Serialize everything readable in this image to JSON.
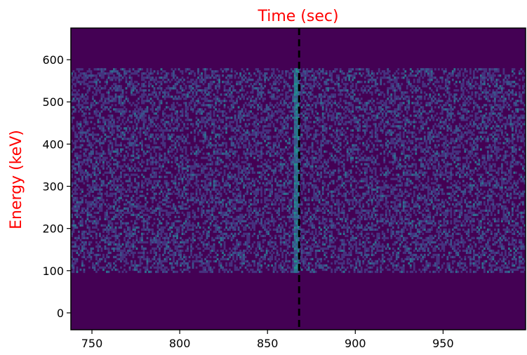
{
  "chart_data": {
    "type": "heatmap",
    "title": "Time (sec)",
    "title_color": "#ff0000",
    "xlabel": "",
    "ylabel": "Energy (keV)",
    "ylabel_color": "#ff0000",
    "xlim": [
      738,
      997
    ],
    "ylim": [
      -40,
      675
    ],
    "x_ticks": [
      750,
      800,
      850,
      900,
      950
    ],
    "x_tick_labels": [
      "750",
      "800",
      "850",
      "900",
      "950"
    ],
    "y_ticks": [
      0,
      100,
      200,
      300,
      400,
      500,
      600
    ],
    "y_tick_labels": [
      "0",
      "100",
      "200",
      "300",
      "400",
      "500",
      "600"
    ],
    "colormap": "viridis",
    "colors": {
      "empty": "#440154",
      "low": "#46317e",
      "mid": "#3b528b",
      "high": "#2c728e",
      "peak": "#21918c"
    },
    "signal_band_energy_kev": [
      95,
      580
    ],
    "time_bin_sec": 1,
    "energy_bin_kev": 5,
    "burst_marker": {
      "x": 868,
      "style": "dashed",
      "color": "#000000",
      "description_of_feature": "brighter vertical column of counts at ~866 sec"
    },
    "grid": false
  }
}
